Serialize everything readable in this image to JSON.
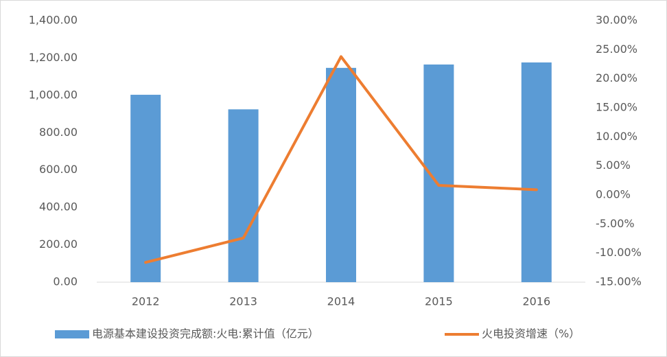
{
  "chart_data": {
    "type": "combo",
    "categories": [
      "2012",
      "2013",
      "2014",
      "2015",
      "2016"
    ],
    "series": [
      {
        "name": "电源基本建设投资完成额:火电:累计值（亿元）",
        "color": "#5b9bd5",
        "values": [
          1003,
          925,
          1147,
          1165,
          1176
        ]
      },
      {
        "name": "火电投资增速（%）",
        "color": "#ed7d31",
        "axis": "y2",
        "values": [
          -11.6,
          -7.4,
          23.8,
          1.65,
          0.9
        ]
      }
    ],
    "ylim": [
      0,
      1400
    ],
    "yticks": [
      {
        "value": 0,
        "label": "0.00"
      },
      {
        "value": 200,
        "label": "200.00"
      },
      {
        "value": 400,
        "label": "400.00"
      },
      {
        "value": 600,
        "label": "600.00"
      },
      {
        "value": 800,
        "label": "800.00"
      },
      {
        "value": 1000,
        "label": "1,000.00"
      },
      {
        "value": 1200,
        "label": "1,200.00"
      },
      {
        "value": 1400,
        "label": "1,400.00"
      }
    ],
    "y2lim": [
      -15,
      30
    ],
    "y2ticks": [
      {
        "value": -15,
        "label": "-15.00%"
      },
      {
        "value": -10,
        "label": "-10.00%"
      },
      {
        "value": -5,
        "label": "-5.00%"
      },
      {
        "value": 0,
        "label": "0.00%"
      },
      {
        "value": 5,
        "label": "5.00%"
      },
      {
        "value": 10,
        "label": "10.00%"
      },
      {
        "value": 15,
        "label": "15.00%"
      },
      {
        "value": 20,
        "label": "20.00%"
      },
      {
        "value": 25,
        "label": "25.00%"
      },
      {
        "value": 30,
        "label": "30.00%"
      }
    ],
    "grid": false
  }
}
